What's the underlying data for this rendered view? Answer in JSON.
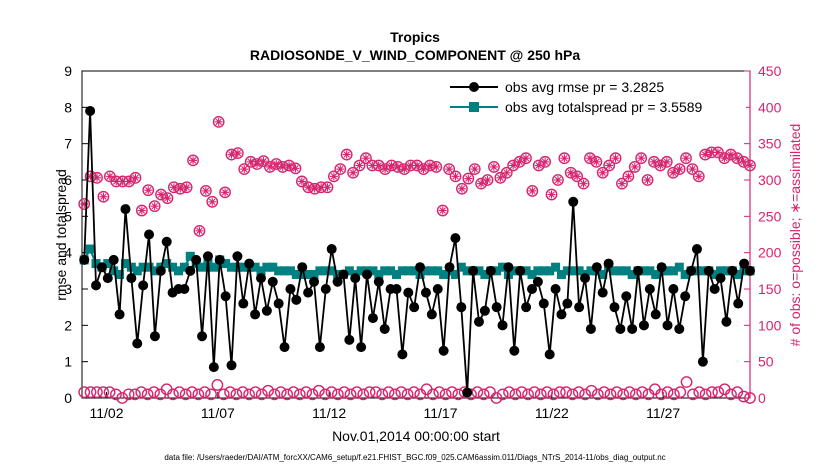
{
  "chart_data": {
    "type": "line",
    "title": "Tropics",
    "subtitle": "RADIOSONDE_V_WIND_COMPONENT @ 250 hPa",
    "xlabel": "Nov.01,2014 00:00:00 start",
    "ylabel_left": "rmse and totalspread",
    "ylabel_right": "# of obs: o=possible; ∗=assimilated",
    "ylim_left": [
      0,
      9
    ],
    "ylim_right": [
      0,
      450
    ],
    "xlim": [
      0.9,
      30.9
    ],
    "yticks_left": [
      "0",
      "1",
      "2",
      "3",
      "4",
      "5",
      "6",
      "7",
      "8",
      "9"
    ],
    "yticks_right": [
      "0",
      "50",
      "100",
      "150",
      "200",
      "250",
      "300",
      "350",
      "400",
      "450"
    ],
    "xticks": [
      {
        "pos": 2,
        "label": "11/02"
      },
      {
        "pos": 7,
        "label": "11/07"
      },
      {
        "pos": 12,
        "label": "11/12"
      },
      {
        "pos": 17,
        "label": "11/17"
      },
      {
        "pos": 22,
        "label": "11/22"
      },
      {
        "pos": 27,
        "label": "11/27"
      }
    ],
    "legend": [
      {
        "label": "obs avg rmse pr = 3.2825",
        "color": "#000000",
        "marker": "circle"
      },
      {
        "label": "obs avg totalspread pr = 3.5589",
        "color": "#008080",
        "marker": "square"
      }
    ],
    "footer": "data file: /Users/raeder/DAI/ATM_forcXX/CAM6_setup/f.e21.FHIST_BGC.f09_025.CAM6assim.011/Diags_NTrS_2014-11/obs_diag_output.nc",
    "colors": {
      "rmse": "#000000",
      "spread": "#008080",
      "obs": "#d6246e"
    },
    "series": [
      {
        "name": "rmse",
        "values": [
          3.8,
          7.9,
          3.1,
          3.6,
          3.3,
          3.8,
          2.3,
          5.2,
          3.3,
          1.5,
          3.1,
          4.5,
          1.7,
          3.5,
          4.3,
          2.9,
          3.0,
          3.0,
          3.5,
          3.8,
          1.7,
          3.9,
          0.85,
          3.8,
          2.8,
          0.9,
          3.9,
          2.6,
          3.7,
          2.3,
          3.3,
          2.4,
          3.2,
          2.6,
          1.4,
          3.0,
          2.7,
          3.6,
          2.9,
          3.2,
          1.4,
          3.0,
          4.1,
          3.2,
          3.4,
          1.6,
          3.3,
          1.4,
          3.4,
          2.2,
          3.2,
          1.9,
          3.0,
          3.0,
          1.2,
          2.9,
          2.5,
          3.6,
          2.9,
          2.3,
          3.0,
          1.3,
          3.6,
          4.4,
          2.5,
          0.15,
          3.5,
          2.1,
          2.4,
          3.5,
          2.5,
          2.0,
          3.6,
          1.3,
          3.5,
          2.5,
          3.0,
          3.2,
          2.6,
          1.2,
          3.0,
          2.3,
          2.6,
          5.4,
          2.5,
          3.3,
          1.9,
          3.6,
          2.9,
          3.7,
          2.5,
          1.9,
          2.8,
          1.9,
          3.5,
          2.0,
          3.0,
          2.3,
          3.6,
          2.0,
          3.0,
          1.9,
          2.8,
          3.5,
          4.1,
          1.0,
          3.5,
          3.0,
          3.3,
          2.1,
          3.5,
          2.6,
          3.7,
          3.5
        ]
      },
      {
        "name": "totalspread",
        "values": [
          3.8,
          4.1,
          3.7,
          3.6,
          3.7,
          3.5,
          3.4,
          3.7,
          3.6,
          3.5,
          3.6,
          3.6,
          3.5,
          3.6,
          3.7,
          3.6,
          3.5,
          3.6,
          3.9,
          3.7,
          3.6,
          3.7,
          3.6,
          3.8,
          3.7,
          3.6,
          3.6,
          3.6,
          3.6,
          3.6,
          3.5,
          3.6,
          3.6,
          3.5,
          3.5,
          3.5,
          3.4,
          3.4,
          3.4,
          3.4,
          3.5,
          3.5,
          3.5,
          3.4,
          3.4,
          3.5,
          3.4,
          3.5,
          3.5,
          3.5,
          3.4,
          3.5,
          3.5,
          3.4,
          3.5,
          3.5,
          3.5,
          3.4,
          3.5,
          3.5,
          3.5,
          3.4,
          3.5,
          3.4,
          3.6,
          3.5,
          3.5,
          3.5,
          3.4,
          3.5,
          3.5,
          3.6,
          3.4,
          3.5,
          3.5,
          3.5,
          3.4,
          3.5,
          3.5,
          3.5,
          3.6,
          3.4,
          3.5,
          3.5,
          3.5,
          3.4,
          3.5,
          3.5,
          3.4,
          3.6,
          3.5,
          3.5,
          3.5,
          3.4,
          3.5,
          3.5,
          3.5,
          3.4,
          3.5,
          3.5,
          3.5,
          3.6,
          3.4,
          3.5,
          3.5,
          3.5,
          3.5,
          3.4,
          3.5,
          3.5,
          3.5,
          3.4,
          3.5,
          3.5
        ]
      },
      {
        "name": "obs possible",
        "values": [
          267,
          305,
          303,
          277,
          305,
          298,
          298,
          298,
          303,
          258,
          286,
          264,
          280,
          275,
          290,
          288,
          290,
          327,
          230,
          285,
          270,
          380,
          283,
          335,
          337,
          315,
          325,
          322,
          326,
          318,
          322,
          318,
          320,
          316,
          298,
          290,
          288,
          290,
          290,
          305,
          315,
          335,
          310,
          320,
          330,
          320,
          320,
          315,
          320,
          318,
          315,
          320,
          320,
          315,
          320,
          318,
          258,
          315,
          305,
          288,
          302,
          315,
          295,
          300,
          318,
          303,
          310,
          320,
          325,
          330,
          285,
          320,
          325,
          280,
          300,
          330,
          310,
          305,
          295,
          330,
          325,
          310,
          320,
          330,
          295,
          305,
          318,
          330,
          300,
          325,
          320,
          325,
          310,
          315,
          330,
          315,
          305,
          335,
          338,
          338,
          330,
          335,
          330,
          325,
          320
        ]
      },
      {
        "name": "obs assimilated",
        "values": [
          267,
          305,
          303,
          277,
          305,
          298,
          298,
          298,
          303,
          258,
          286,
          264,
          280,
          275,
          290,
          288,
          290,
          327,
          230,
          285,
          270,
          380,
          283,
          335,
          337,
          315,
          325,
          322,
          326,
          318,
          322,
          318,
          320,
          316,
          298,
          290,
          288,
          290,
          290,
          305,
          315,
          335,
          310,
          320,
          330,
          320,
          320,
          315,
          320,
          318,
          315,
          320,
          320,
          315,
          320,
          318,
          258,
          315,
          305,
          288,
          302,
          315,
          295,
          300,
          318,
          303,
          310,
          320,
          325,
          330,
          285,
          320,
          325,
          280,
          300,
          330,
          310,
          305,
          295,
          330,
          325,
          310,
          320,
          330,
          295,
          305,
          318,
          330,
          300,
          325,
          320,
          325,
          310,
          315,
          330,
          315,
          305,
          335,
          338,
          338,
          330,
          335,
          330,
          325,
          320
        ]
      },
      {
        "name": "obs low",
        "values": [
          8,
          8,
          8,
          8,
          8,
          5,
          0,
          5,
          5,
          8,
          5,
          8,
          5,
          12,
          5,
          8,
          5,
          8,
          5,
          8,
          5,
          18,
          5,
          8,
          5,
          8,
          5,
          8,
          5,
          10,
          5,
          8,
          5,
          8,
          5,
          8,
          5,
          10,
          5,
          8,
          5,
          8,
          5,
          8,
          5,
          8,
          8,
          5,
          8,
          5,
          8,
          5,
          8,
          5,
          12,
          5,
          8,
          5,
          8,
          5,
          8,
          5,
          8,
          5,
          8,
          0,
          5,
          8,
          5,
          8,
          5,
          8,
          5,
          8,
          5,
          8,
          8,
          5,
          8,
          5,
          10,
          5,
          8,
          5,
          8,
          5,
          8,
          5,
          8,
          5,
          12,
          5,
          8,
          5,
          8,
          22,
          5,
          8,
          5,
          8,
          8,
          12,
          5,
          8,
          2,
          0
        ]
      }
    ]
  }
}
